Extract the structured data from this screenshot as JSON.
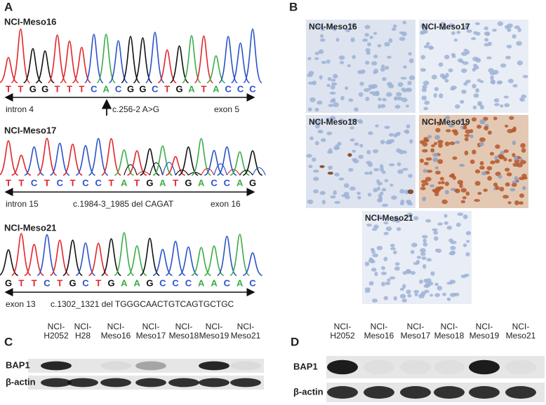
{
  "panels": {
    "a": {
      "label": "A",
      "tracks": [
        {
          "title": "NCI-Meso16",
          "sequence": [
            "T",
            "T",
            "G",
            "G",
            "T",
            "T",
            "T",
            "C",
            "A",
            "C",
            "G",
            "G",
            "C",
            "T",
            "G",
            "A",
            "T",
            "A",
            "C",
            "C",
            "C"
          ],
          "left": "intron 4",
          "mutation": "c.256-2 A>G",
          "right": "exon 5"
        },
        {
          "title": "NCI-Meso17",
          "sequence": [
            "T",
            "T",
            "C",
            "T",
            "C",
            "T",
            "C",
            "C",
            "T",
            "A",
            "T",
            "G",
            "A",
            "T",
            "G",
            "A",
            "C",
            "C",
            "A",
            "G"
          ],
          "left": "intron 15",
          "mutation": "c.1984-3_1985 del CAGAT",
          "right": "exon 16"
        },
        {
          "title": "NCI-Meso21",
          "sequence": [
            "G",
            "T",
            "T",
            "C",
            "T",
            "G",
            "C",
            "T",
            "G",
            "A",
            "A",
            "G",
            "C",
            "C",
            "C",
            "A",
            "A",
            "C",
            "A",
            "C"
          ],
          "left": "exon 13",
          "mutation": "c.1302_1321 del TGGGCAACTGTCAGTGCTGC"
        }
      ]
    },
    "b": {
      "label": "B",
      "images": [
        "NCI-Meso16",
        "NCI-Meso17",
        "NCI-Meso18",
        "NCI-Meso19",
        "NCI-Meso21"
      ]
    },
    "c": {
      "label": "C",
      "lanes": [
        [
          "NCI-",
          "H2052"
        ],
        [
          "NCI-",
          "H28"
        ],
        [
          "NCI-",
          "Meso16"
        ],
        [
          "NCI-",
          "Meso17"
        ],
        [
          "NCI-",
          "Meso18"
        ],
        [
          "NCI-",
          "Meso19"
        ],
        [
          "NCI-",
          "Meso21"
        ]
      ],
      "rows": [
        "BAP1",
        "β-actin"
      ]
    },
    "d": {
      "label": "D",
      "lanes": [
        [
          "NCI-",
          "H2052"
        ],
        [
          "NCI-",
          "Meso16"
        ],
        [
          "NCI-",
          "Meso17"
        ],
        [
          "NCI-",
          "Meso18"
        ],
        [
          "NCI-",
          "Meso19"
        ],
        [
          "NCI-",
          "Meso21"
        ]
      ],
      "rows": [
        "BAP1",
        "β-actin"
      ]
    }
  }
}
